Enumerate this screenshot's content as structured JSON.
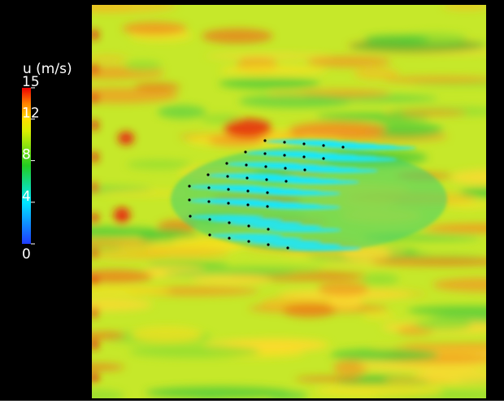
{
  "chart_data": {
    "type": "heatmap",
    "colorbar_label": "u (m/s)",
    "clim": [
      0,
      15
    ],
    "cticks": [
      0,
      4,
      8,
      12,
      15
    ]
  }
}
